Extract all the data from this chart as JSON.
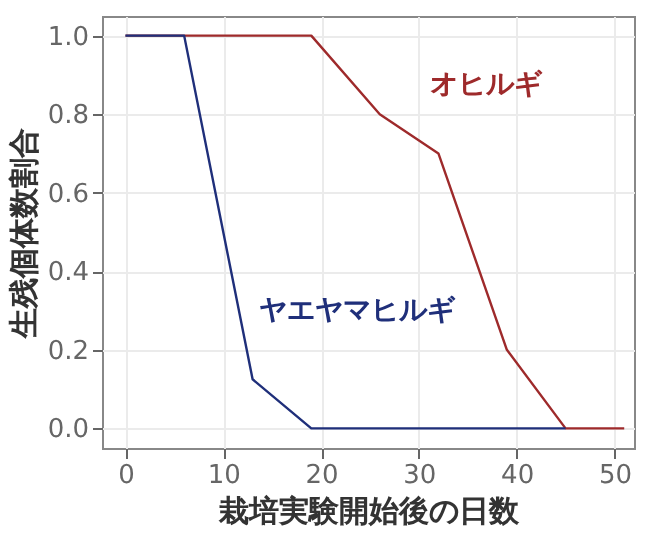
{
  "chart_data": {
    "type": "line",
    "xlabel": "栽培実験開始後の日数",
    "ylabel": "生残個体数割合",
    "series": [
      {
        "name": "オヒルギ",
        "color": "#9e2a2b",
        "x": [
          0,
          19,
          26,
          32,
          39,
          45,
          51
        ],
        "values": [
          1,
          1,
          0.8,
          0.7,
          0.2,
          0,
          0
        ]
      },
      {
        "name": "ヤエヤマヒルギ",
        "color": "#1f2f7a",
        "x": [
          0,
          6,
          13,
          19,
          45
        ],
        "values": [
          1,
          1,
          0.125,
          0,
          0
        ]
      }
    ],
    "xlim": [
      -2.4,
      52
    ],
    "xticks": [
      0,
      10,
      20,
      30,
      40,
      50
    ],
    "ylim": [
      -0.05,
      1.05
    ],
    "yticks": [
      {
        "value": 0,
        "label": "0.0"
      },
      0.2,
      0.4,
      0.6,
      0.8,
      {
        "value": 1,
        "label": "1.0"
      }
    ],
    "grid": true,
    "marker": "none",
    "line_style": "solid"
  }
}
